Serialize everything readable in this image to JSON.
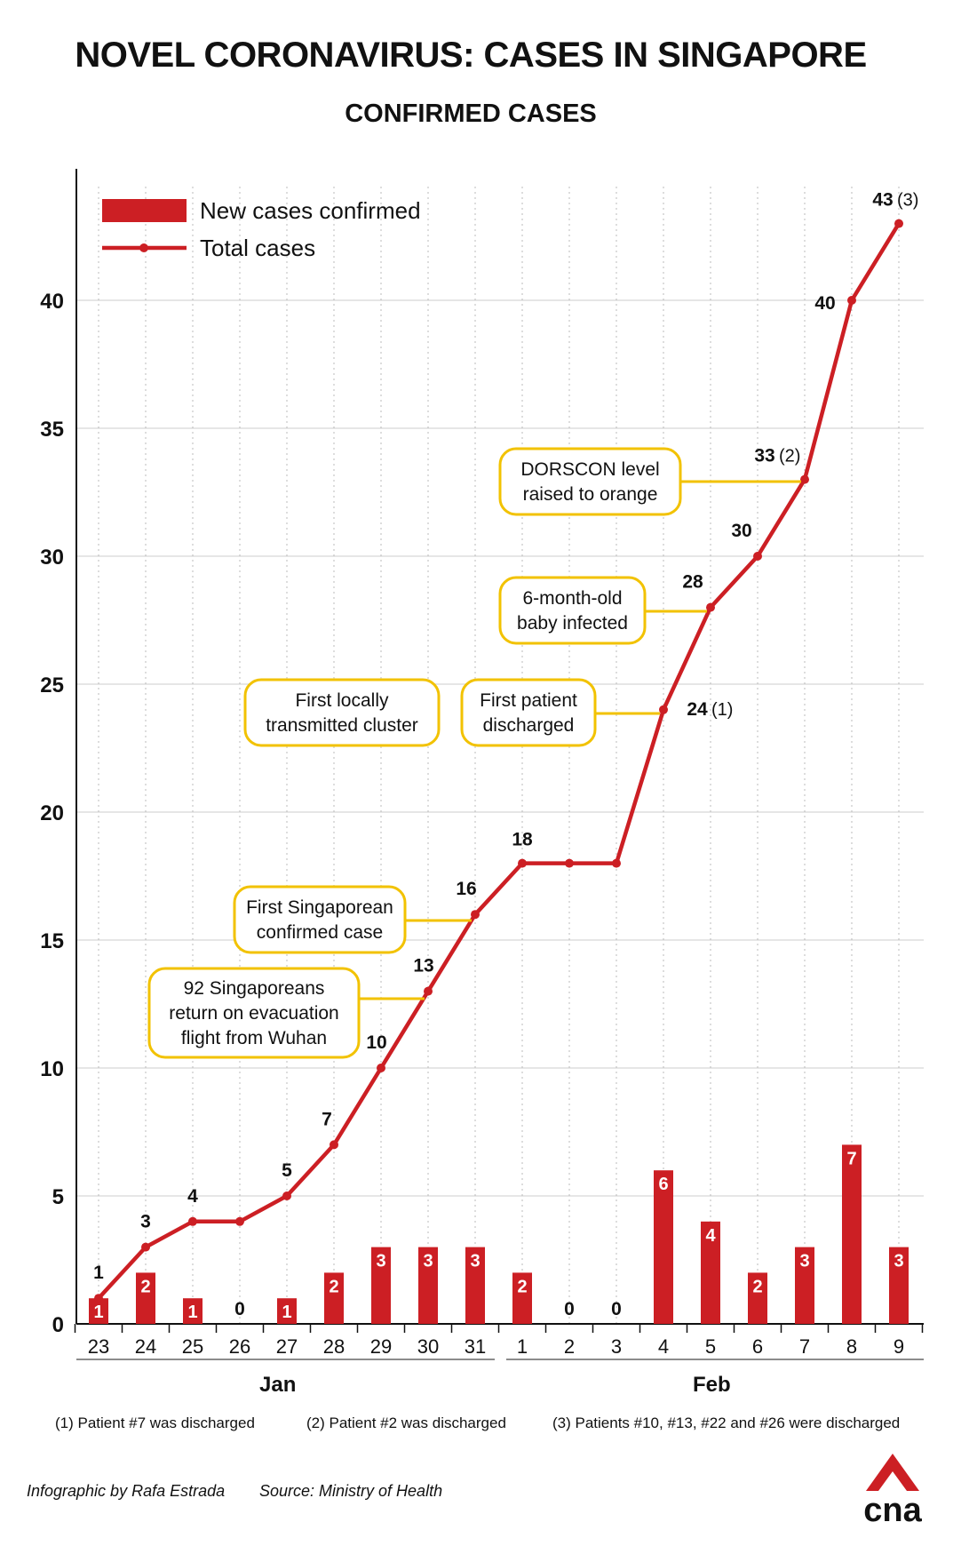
{
  "title": "NOVEL CORONAVIRUS: CASES IN SINGAPORE",
  "subtitle": "CONFIRMED CASES",
  "legend": {
    "bar_label": "New cases confirmed",
    "line_label": "Total cases"
  },
  "months": {
    "jan": "Jan",
    "feb": "Feb"
  },
  "footnotes": [
    "(1) Patient #7 was discharged",
    "(2) Patient #2 was discharged",
    "(3) Patients #10, #13, #22 and #26 were discharged"
  ],
  "credit": {
    "author": "Infographic by Rafa Estrada",
    "source": "Source: Ministry of Health"
  },
  "logo_text": "cna",
  "colors": {
    "bar": "#cc1f24",
    "line": "#cc1f24",
    "callout_border": "#f2c200",
    "grid": "#cccccc"
  },
  "chart_data": {
    "type": "bar",
    "categories": [
      "23",
      "24",
      "25",
      "26",
      "27",
      "28",
      "29",
      "30",
      "31",
      "1",
      "2",
      "3",
      "4",
      "5",
      "6",
      "7",
      "8",
      "9"
    ],
    "series": [
      {
        "name": "New cases confirmed",
        "type": "bar",
        "values": [
          1,
          2,
          1,
          0,
          1,
          2,
          3,
          3,
          3,
          2,
          0,
          0,
          6,
          4,
          2,
          3,
          7,
          3
        ]
      },
      {
        "name": "Total cases",
        "type": "line",
        "values": [
          1,
          3,
          4,
          4,
          5,
          7,
          10,
          13,
          16,
          18,
          18,
          18,
          24,
          28,
          30,
          33,
          40,
          43
        ]
      }
    ],
    "total_labels": [
      "1",
      "3",
      "4",
      "",
      "5",
      "7",
      "10",
      "13",
      "16",
      "18",
      "",
      "",
      "24",
      "28",
      "30",
      "33",
      "40",
      "43"
    ],
    "total_notes": [
      "",
      "",
      "",
      "",
      "",
      "",
      "",
      "",
      "",
      "",
      "",
      "",
      "(1)",
      "",
      "",
      "(2)",
      "",
      "(3)"
    ],
    "ylim": [
      0,
      45
    ],
    "yticks": [
      0,
      5,
      10,
      15,
      20,
      25,
      30,
      35,
      40
    ],
    "grid": true,
    "legend_position": "top-left",
    "annotations": [
      {
        "text": [
          "92 Singaporeans",
          "return on evacuation",
          "flight from Wuhan"
        ],
        "index": 7
      },
      {
        "text": [
          "First Singaporean",
          "confirmed case"
        ],
        "index": 8
      },
      {
        "text": [
          "First locally",
          "transmitted cluster"
        ],
        "index": null
      },
      {
        "text": [
          "First patient",
          "discharged"
        ],
        "index": 12
      },
      {
        "text": [
          "6-month-old",
          "baby infected"
        ],
        "index": 13
      },
      {
        "text": [
          "DORSCON level",
          "raised to orange"
        ],
        "index": 15
      }
    ]
  }
}
